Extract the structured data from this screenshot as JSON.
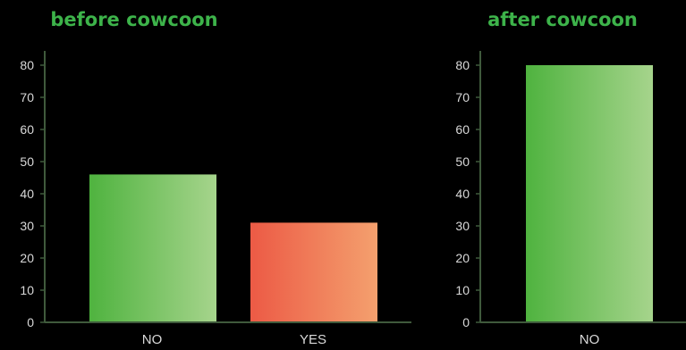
{
  "colors": {
    "background": "#000000",
    "title": "#3db34a",
    "axis": "#3f5a3c",
    "text": "#d9d9d9",
    "green_start": "#4fb33f",
    "green_end": "#a6d48c",
    "red_start": "#ec5a45",
    "red_end": "#f4a06e"
  },
  "chart_data": [
    {
      "type": "bar",
      "title": "before cowcoon",
      "categories": [
        "NO",
        "YES"
      ],
      "values": [
        46,
        31
      ],
      "bar_colors": [
        "green",
        "red"
      ],
      "ylim": [
        0,
        80
      ],
      "yticks": [
        0,
        10,
        20,
        30,
        40,
        50,
        60,
        70,
        80
      ],
      "grid": false,
      "legend": "none"
    },
    {
      "type": "bar",
      "title": "after cowcoon",
      "categories": [
        "NO"
      ],
      "values": [
        80
      ],
      "bar_colors": [
        "green"
      ],
      "ylim": [
        0,
        80
      ],
      "yticks": [
        0,
        10,
        20,
        30,
        40,
        50,
        60,
        70,
        80
      ],
      "grid": false,
      "legend": "none"
    }
  ]
}
